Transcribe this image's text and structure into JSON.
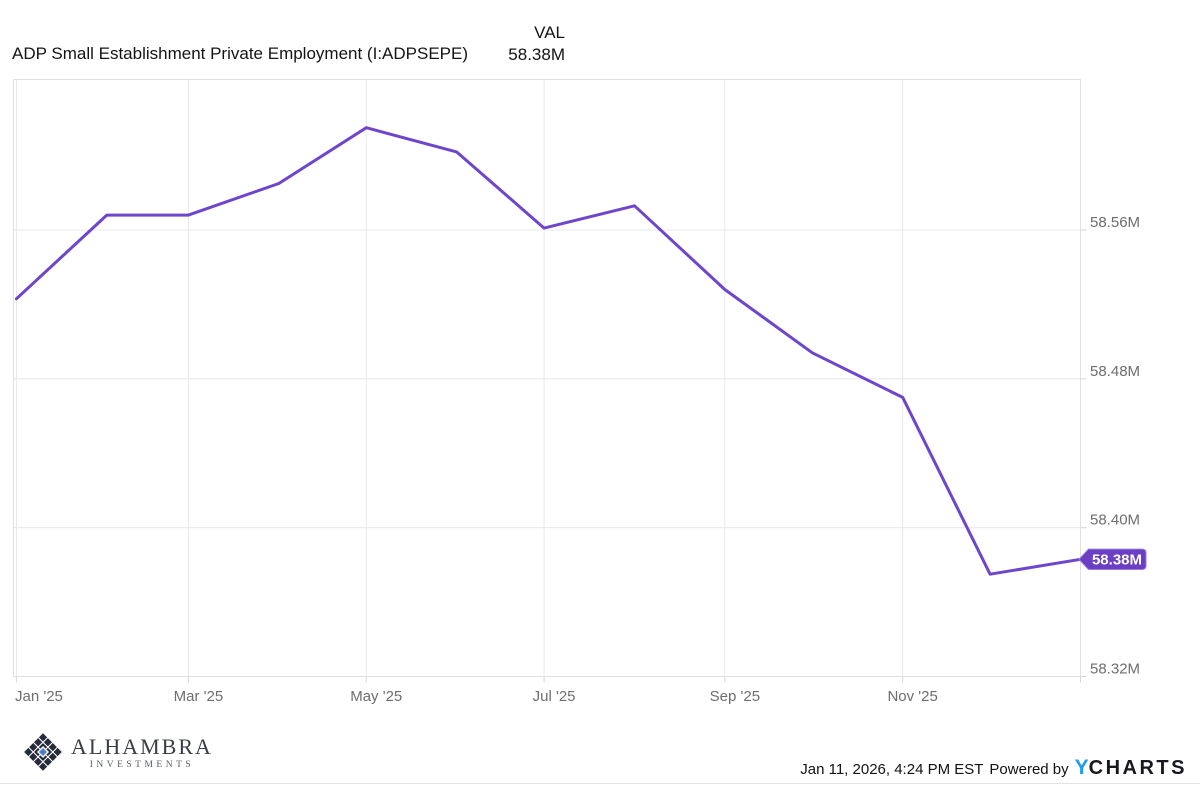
{
  "header": {
    "title": "ADP Small Establishment Private Employment (I:ADPSEPE)",
    "legend_label": "VAL",
    "legend_value": "58.38M"
  },
  "chart_data": {
    "type": "line",
    "title": "ADP Small Establishment Private Employment (I:ADPSEPE)",
    "units": "millions of employees",
    "series": [
      {
        "name": "ADP Small Establishment Private Employment",
        "x": [
          "2025-01-01",
          "2025-02-01",
          "2025-03-01",
          "2025-04-01",
          "2025-05-01",
          "2025-06-01",
          "2025-07-01",
          "2025-08-01",
          "2025-09-01",
          "2025-10-01",
          "2025-11-01",
          "2025-12-01",
          "2026-01-01"
        ],
        "values": [
          58.523,
          58.568,
          58.568,
          58.585,
          58.615,
          58.602,
          58.561,
          58.573,
          58.528,
          58.494,
          58.47,
          58.375,
          58.383
        ]
      }
    ],
    "last_value_label": "58.38M",
    "xlim": [
      "2024-12-31",
      "2026-01-01"
    ],
    "ylim": [
      58.32,
      58.6409
    ],
    "x_ticks": [
      {
        "date": "2025-01-01",
        "label": "Jan '25"
      },
      {
        "date": "2025-03-01",
        "label": "Mar '25"
      },
      {
        "date": "2025-05-01",
        "label": "May '25"
      },
      {
        "date": "2025-07-01",
        "label": "Jul '25"
      },
      {
        "date": "2025-09-01",
        "label": "Sep '25"
      },
      {
        "date": "2025-11-01",
        "label": "Nov '25"
      }
    ],
    "y_ticks": [
      {
        "value": 58.56,
        "label": "58.56M"
      },
      {
        "value": 58.48,
        "label": "58.48M"
      },
      {
        "value": 58.4,
        "label": "58.40M"
      },
      {
        "value": 58.32,
        "label": "58.32M"
      }
    ],
    "grid": true,
    "legend_position": "top",
    "theme": {
      "line": "#6e46cd",
      "badge": "#6a3fc4",
      "badge_stroke": "#9b79e0",
      "badge_text": "#ffffff",
      "grid": "#e8e8e8",
      "border": "#e0e0e0",
      "tick": "#d6d6d6",
      "axis_text": "#6e6e6e"
    }
  },
  "footer": {
    "brand": {
      "name": "ALHAMBRA",
      "subtitle": "INVESTMENTS",
      "logo_dark": "#252b3a",
      "logo_blue": "#4d7cc9"
    },
    "timestamp": "Jan 11, 2026, 4:24 PM EST",
    "powered_by": "Powered by",
    "ycharts_y": "Y",
    "ycharts_rest": "CHARTS",
    "ycharts_y_color": "#1e9cf0"
  }
}
